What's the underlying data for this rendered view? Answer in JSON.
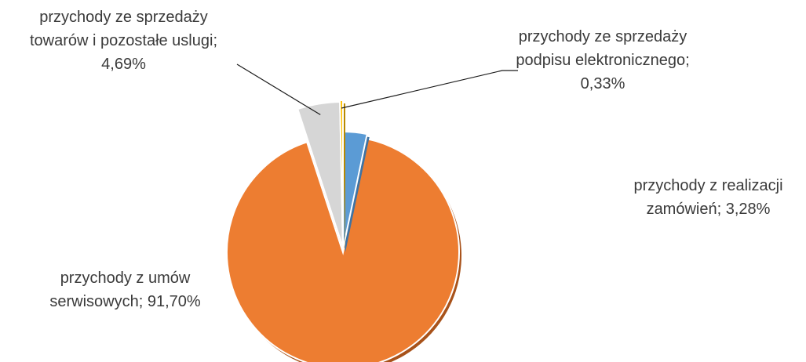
{
  "chart_data": {
    "type": "pie",
    "title": "",
    "slices": [
      {
        "label": "przychody z realizacji zamówień; 3,28%",
        "value": 3.28,
        "color": "#5b9bd5"
      },
      {
        "label": "przychody z umów serwisowych; 91,70%",
        "value": 91.7,
        "color": "#ed7d31"
      },
      {
        "label": "przychody ze sprzedaży towarów i pozostałe uslugi; 4,69%",
        "value": 4.69,
        "color": "#d6d6d6"
      },
      {
        "label": "przychody ze sprzedaży podpisu elektronicznego; 0,33%",
        "value": 0.33,
        "color": "#ffc000"
      }
    ],
    "start_angle_deg": 0,
    "direction": "clockwise",
    "exploded": true,
    "legend": "none"
  },
  "labels": {
    "realizacji": [
      "przychody z realizacji",
      "zamówień; 3,28%"
    ],
    "serwis": [
      "przychody z umów",
      "serwisowych; 91,70%"
    ],
    "towary": [
      "przychody ze sprzedaży",
      "towarów i pozostałe uslugi;",
      "4,69%"
    ],
    "podpis": [
      "przychody ze sprzedaży",
      "podpisu elektronicznego;",
      "0,33%"
    ]
  }
}
